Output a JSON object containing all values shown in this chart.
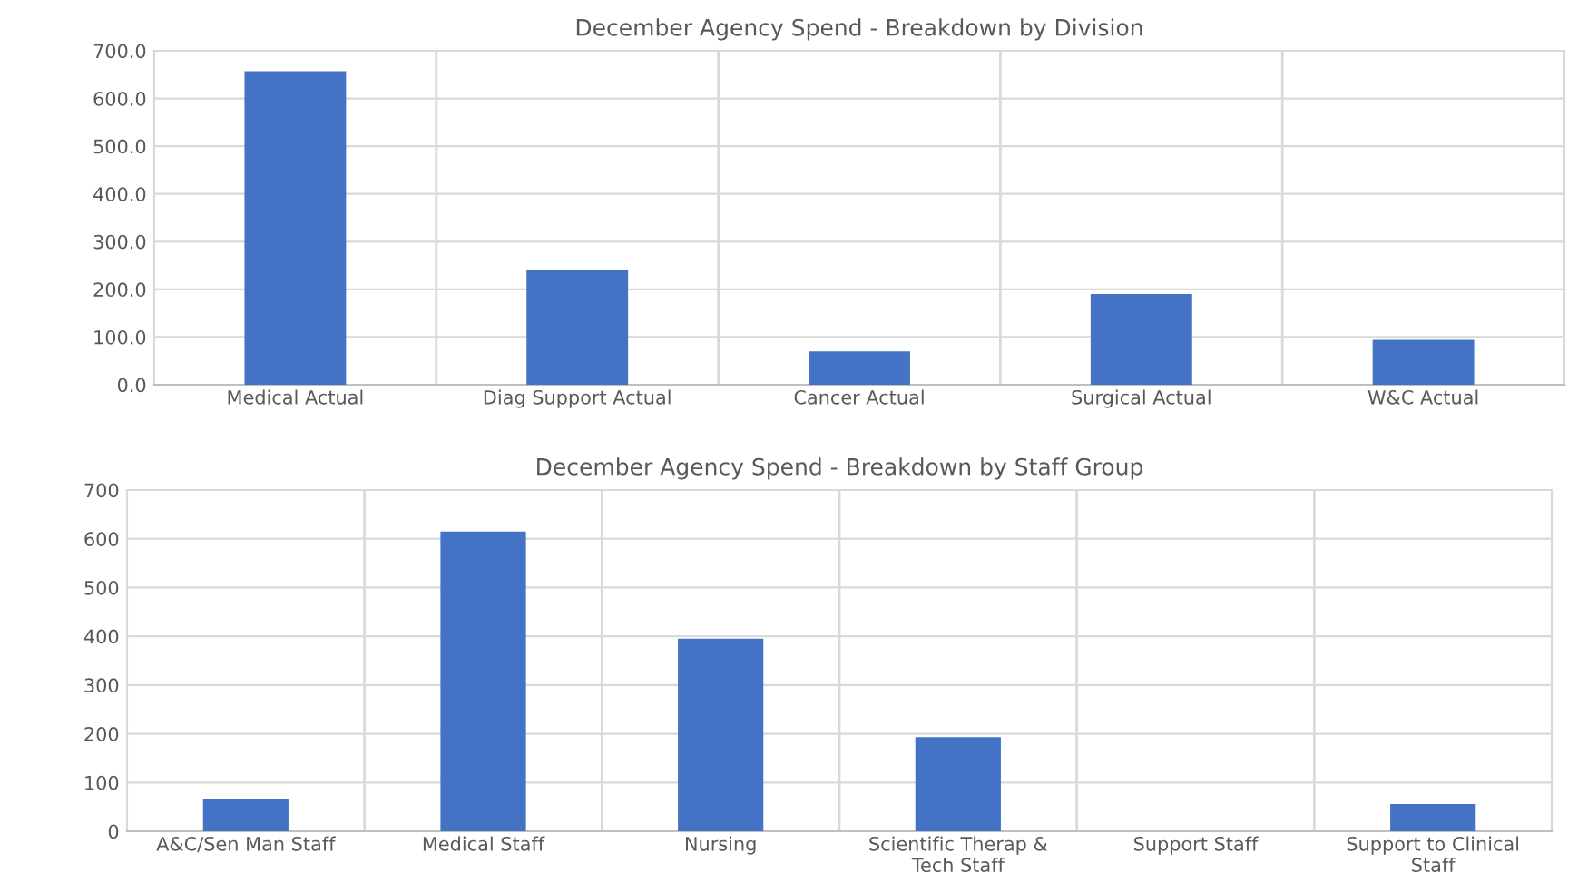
{
  "chart_data": [
    {
      "type": "bar",
      "title": "December Agency Spend - Breakdown by Division",
      "categories": [
        "Medical Actual",
        "Diag Support Actual",
        "Cancer Actual",
        "Surgical Actual",
        "W&C Actual"
      ],
      "values": [
        657,
        241,
        70,
        190,
        94
      ],
      "color": "#4472c4",
      "ylim": [
        0,
        700
      ],
      "yticks": [
        {
          "value": 0,
          "label": "0.0"
        },
        {
          "value": 100,
          "label": "100.0"
        },
        {
          "value": 200,
          "label": "200.0"
        },
        {
          "value": 300,
          "label": "300.0"
        },
        {
          "value": 400,
          "label": "400.0"
        },
        {
          "value": 500,
          "label": "500.0"
        },
        {
          "value": 600,
          "label": "600.0"
        },
        {
          "value": 700,
          "label": "700.0"
        }
      ],
      "grid": true
    },
    {
      "type": "bar",
      "title": "December Agency Spend - Breakdown by Staff Group",
      "categories": [
        "A&C/Sen Man Staff",
        "Medical Staff",
        "Nursing",
        "Scientific Therap & Tech Staff",
        "Support Staff",
        "Support to Clinical Staff"
      ],
      "values": [
        66,
        615,
        395,
        193,
        0,
        56
      ],
      "color": "#4472c4",
      "ylim": [
        0,
        700
      ],
      "yticks": [
        0,
        100,
        200,
        300,
        400,
        500,
        600,
        700
      ],
      "grid": true
    }
  ]
}
